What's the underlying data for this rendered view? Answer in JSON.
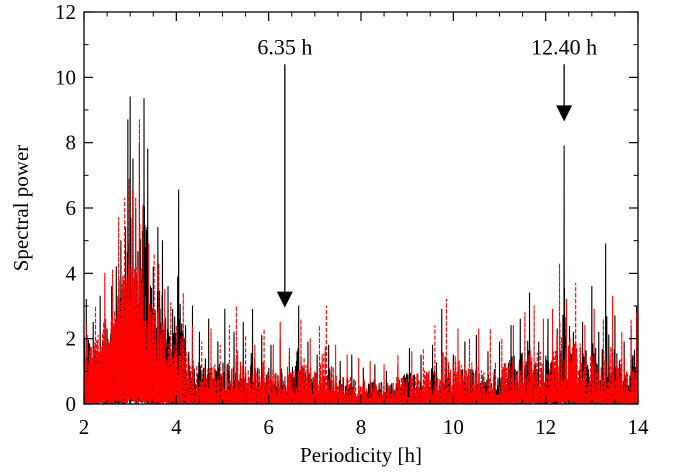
{
  "chart_data": {
    "type": "line",
    "title": "",
    "xlabel": "Periodicity [h]",
    "ylabel": "Spectral power",
    "xlim": [
      2,
      14
    ],
    "ylim": [
      0,
      12
    ],
    "xticks": [
      2,
      4,
      6,
      8,
      10,
      12,
      14
    ],
    "yticks": [
      0,
      2,
      4,
      6,
      8,
      10,
      12
    ],
    "grid": false,
    "legend": "none",
    "series": [
      {
        "color": "#000000",
        "style": "solid",
        "peaks": [
          [
            2.05,
            3.2
          ],
          [
            2.2,
            2.5
          ],
          [
            2.35,
            3.3
          ],
          [
            2.5,
            2.3
          ],
          [
            2.6,
            3.6
          ],
          [
            2.7,
            4.2
          ],
          [
            2.8,
            5.0
          ],
          [
            2.9,
            5.4
          ],
          [
            2.95,
            8.7
          ],
          [
            3.0,
            9.4
          ],
          [
            3.06,
            7.5
          ],
          [
            3.12,
            6.0
          ],
          [
            3.2,
            8.0
          ],
          [
            3.3,
            9.35
          ],
          [
            3.38,
            7.8
          ],
          [
            3.5,
            4.2
          ],
          [
            3.6,
            5.4
          ],
          [
            3.7,
            5.0
          ],
          [
            3.82,
            3.6
          ],
          [
            3.92,
            2.9
          ],
          [
            4.05,
            6.55
          ],
          [
            4.2,
            2.4
          ],
          [
            4.35,
            3.0
          ],
          [
            4.5,
            2.2
          ],
          [
            4.7,
            2.6
          ],
          [
            4.9,
            1.9
          ],
          [
            5.05,
            2.9
          ],
          [
            5.25,
            2.2
          ],
          [
            5.45,
            2.5
          ],
          [
            5.65,
            2.9
          ],
          [
            5.85,
            2.1
          ],
          [
            6.05,
            1.8
          ],
          [
            6.25,
            2.0
          ],
          [
            6.45,
            1.6
          ],
          [
            6.65,
            3.0
          ],
          [
            6.85,
            1.9
          ],
          [
            7.05,
            1.5
          ],
          [
            7.3,
            1.8
          ],
          [
            7.55,
            1.3
          ],
          [
            7.8,
            1.5
          ],
          [
            8.05,
            1.1
          ],
          [
            8.3,
            1.2
          ],
          [
            8.55,
            1.0
          ],
          [
            8.8,
            1.2
          ],
          [
            9.05,
            1.7
          ],
          [
            9.3,
            1.5
          ],
          [
            9.55,
            1.8
          ],
          [
            9.75,
            2.9
          ],
          [
            10.0,
            1.5
          ],
          [
            10.25,
            1.9
          ],
          [
            10.5,
            2.1
          ],
          [
            10.75,
            1.6
          ],
          [
            11.0,
            1.9
          ],
          [
            11.25,
            2.4
          ],
          [
            11.45,
            2.6
          ],
          [
            11.65,
            3.4
          ],
          [
            11.85,
            1.9
          ],
          [
            12.05,
            2.6
          ],
          [
            12.25,
            2.3
          ],
          [
            12.4,
            7.9
          ],
          [
            12.6,
            2.2
          ],
          [
            12.8,
            2.5
          ],
          [
            13.0,
            3.6
          ],
          [
            13.15,
            2.2
          ],
          [
            13.3,
            4.9
          ],
          [
            13.5,
            2.7
          ],
          [
            13.7,
            1.9
          ],
          [
            13.85,
            2.4
          ],
          [
            13.97,
            3.0
          ]
        ]
      },
      {
        "color": "#ff0000",
        "style": "dashed",
        "peaks": [
          [
            2.05,
            2.4
          ],
          [
            2.25,
            3.0
          ],
          [
            2.45,
            4.0
          ],
          [
            2.62,
            4.1
          ],
          [
            2.75,
            5.7
          ],
          [
            2.88,
            6.3
          ],
          [
            2.98,
            6.9
          ],
          [
            3.05,
            6.5
          ],
          [
            3.12,
            6.3
          ],
          [
            3.2,
            8.7
          ],
          [
            3.28,
            6.1
          ],
          [
            3.4,
            4.9
          ],
          [
            3.52,
            4.6
          ],
          [
            3.62,
            4.3
          ],
          [
            3.75,
            3.5
          ],
          [
            3.88,
            3.1
          ],
          [
            4.0,
            2.4
          ],
          [
            4.15,
            3.4
          ],
          [
            4.35,
            2.4
          ],
          [
            4.55,
            1.9
          ],
          [
            4.75,
            2.3
          ],
          [
            4.95,
            1.8
          ],
          [
            5.15,
            2.4
          ],
          [
            5.3,
            3.0
          ],
          [
            5.5,
            2.1
          ],
          [
            5.7,
            1.8
          ],
          [
            5.9,
            2.3
          ],
          [
            6.1,
            1.8
          ],
          [
            6.25,
            2.5
          ],
          [
            6.45,
            1.7
          ],
          [
            6.7,
            2.6
          ],
          [
            6.9,
            2.0
          ],
          [
            7.1,
            2.4
          ],
          [
            7.25,
            3.0
          ],
          [
            7.45,
            1.8
          ],
          [
            7.7,
            1.5
          ],
          [
            7.95,
            1.4
          ],
          [
            8.2,
            1.3
          ],
          [
            8.5,
            1.2
          ],
          [
            8.8,
            1.5
          ],
          [
            9.1,
            1.6
          ],
          [
            9.35,
            1.7
          ],
          [
            9.6,
            2.4
          ],
          [
            9.85,
            3.2
          ],
          [
            10.1,
            2.3
          ],
          [
            10.35,
            2.0
          ],
          [
            10.55,
            2.3
          ],
          [
            10.8,
            2.3
          ],
          [
            11.05,
            2.0
          ],
          [
            11.3,
            2.4
          ],
          [
            11.55,
            2.8
          ],
          [
            11.75,
            3.0
          ],
          [
            11.95,
            2.6
          ],
          [
            12.15,
            2.9
          ],
          [
            12.3,
            4.3
          ],
          [
            12.45,
            3.2
          ],
          [
            12.65,
            3.7
          ],
          [
            12.85,
            2.4
          ],
          [
            13.05,
            2.9
          ],
          [
            13.25,
            2.6
          ],
          [
            13.45,
            3.3
          ],
          [
            13.65,
            2.2
          ],
          [
            13.85,
            2.6
          ],
          [
            13.97,
            2.8
          ]
        ]
      }
    ],
    "annotations": [
      {
        "label": "6.35 h",
        "x": 6.35,
        "y_arrow_tip": 2.95,
        "y_arrow_tail": 10.4
      },
      {
        "label": "12.40 h",
        "x": 12.4,
        "y_arrow_tip": 8.65,
        "y_arrow_tail": 10.4
      }
    ]
  }
}
